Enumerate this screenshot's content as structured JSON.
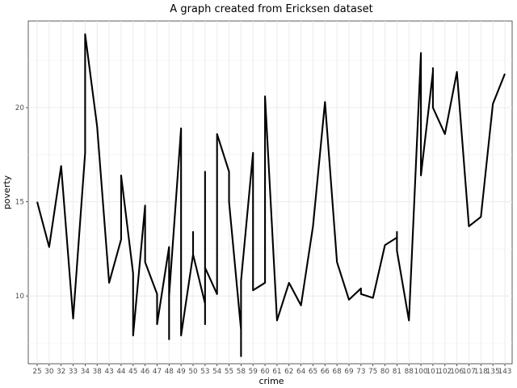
{
  "chart_data": {
    "type": "line",
    "title": "A graph created from Ericksen dataset",
    "xlabel": "crime",
    "ylabel": "poverty",
    "categories": [
      "25",
      "30",
      "32",
      "33",
      "34",
      "38",
      "43",
      "44",
      "45",
      "46",
      "47",
      "48",
      "49",
      "50",
      "53",
      "54",
      "55",
      "58",
      "59",
      "60",
      "61",
      "62",
      "64",
      "65",
      "66",
      "68",
      "69",
      "73",
      "75",
      "80",
      "81",
      "88",
      "100",
      "101",
      "102",
      "106",
      "107",
      "118",
      "135",
      "143"
    ],
    "ylim": [
      6.4,
      24.6
    ],
    "yticks": [
      10,
      15,
      20
    ],
    "grid": true,
    "series": [
      {
        "points": [
          [
            "25",
            15.0
          ],
          [
            "30",
            12.6
          ],
          [
            "32",
            16.9
          ],
          [
            "33",
            8.8
          ],
          [
            "34",
            17.6
          ],
          [
            "34",
            23.9
          ],
          [
            "38",
            19.0
          ],
          [
            "43",
            10.7
          ],
          [
            "44",
            13.0
          ],
          [
            "44",
            16.4
          ],
          [
            "45",
            11.2
          ],
          [
            "45",
            7.9
          ],
          [
            "46",
            14.8
          ],
          [
            "46",
            11.8
          ],
          [
            "47",
            10.1
          ],
          [
            "47",
            8.5
          ],
          [
            "48",
            12.6
          ],
          [
            "48",
            7.7
          ],
          [
            "48",
            10.0
          ],
          [
            "49",
            18.9
          ],
          [
            "49",
            7.9
          ],
          [
            "50",
            12.2
          ],
          [
            "50",
            13.4
          ],
          [
            "50",
            12.2
          ],
          [
            "53",
            9.6
          ],
          [
            "53",
            8.5
          ],
          [
            "53",
            16.6
          ],
          [
            "53",
            11.5
          ],
          [
            "54",
            10.1
          ],
          [
            "54",
            18.6
          ],
          [
            "55",
            16.6
          ],
          [
            "55",
            15.0
          ],
          [
            "58",
            8.2
          ],
          [
            "58",
            6.8
          ],
          [
            "58",
            10.8
          ],
          [
            "59",
            17.6
          ],
          [
            "59",
            10.3
          ],
          [
            "60",
            10.7
          ],
          [
            "60",
            20.6
          ],
          [
            "61",
            8.7
          ],
          [
            "62",
            10.7
          ],
          [
            "64",
            9.5
          ],
          [
            "65",
            13.7
          ],
          [
            "66",
            20.3
          ],
          [
            "68",
            11.8
          ],
          [
            "69",
            9.8
          ],
          [
            "73",
            10.4
          ],
          [
            "73",
            10.1
          ],
          [
            "75",
            9.9
          ],
          [
            "80",
            12.7
          ],
          [
            "81",
            13.1
          ],
          [
            "81",
            13.4
          ],
          [
            "81",
            12.4
          ],
          [
            "88",
            8.7
          ],
          [
            "100",
            22.9
          ],
          [
            "100",
            16.4
          ],
          [
            "101",
            21.9
          ],
          [
            "101",
            22.1
          ],
          [
            "101",
            20.0
          ],
          [
            "102",
            18.6
          ],
          [
            "106",
            21.9
          ],
          [
            "107",
            13.7
          ],
          [
            "118",
            14.2
          ],
          [
            "135",
            20.2
          ],
          [
            "143",
            21.8
          ]
        ]
      }
    ]
  }
}
